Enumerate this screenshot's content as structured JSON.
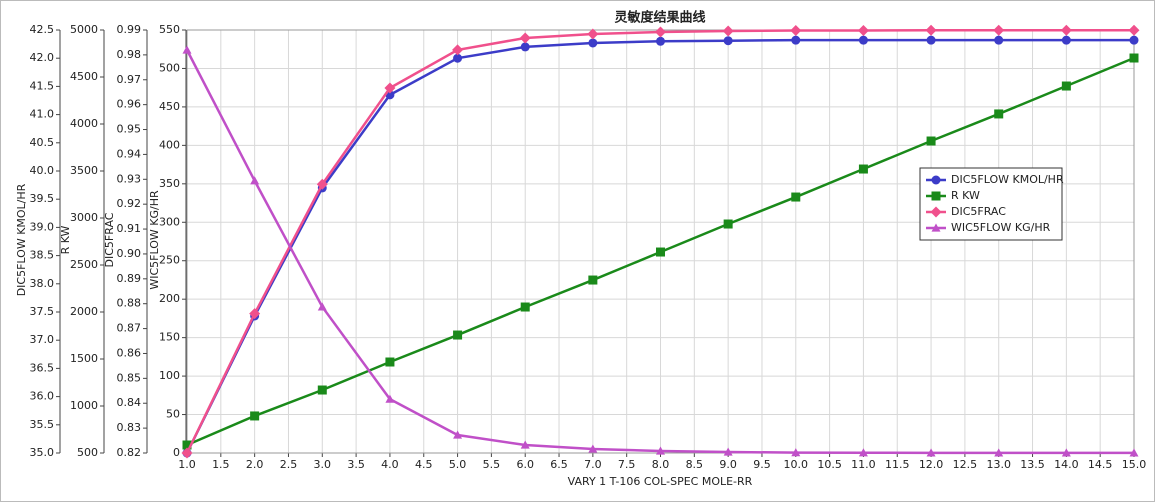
{
  "chart_data": {
    "type": "line",
    "title": "灵敏度结果曲线",
    "x_label": "VARY   1 T-106 COL-SPEC MOLE-RR",
    "x": [
      1,
      2,
      3,
      4,
      5,
      6,
      7,
      8,
      9,
      10,
      11,
      12,
      13,
      14,
      15
    ],
    "xlim": [
      1,
      15
    ],
    "xticks": [
      {
        "value": 1,
        "label": "1.0"
      },
      1.5,
      {
        "value": 2,
        "label": "2.0"
      },
      2.5,
      {
        "value": 3,
        "label": "3.0"
      },
      3.5,
      {
        "value": 4,
        "label": "4.0"
      },
      4.5,
      {
        "value": 5,
        "label": "5.0"
      },
      5.5,
      {
        "value": 6,
        "label": "6.0"
      },
      6.5,
      {
        "value": 7,
        "label": "7.0"
      },
      7.5,
      {
        "value": 8,
        "label": "8.0"
      },
      8.5,
      {
        "value": 9,
        "label": "9.0"
      },
      9.5,
      {
        "value": 10,
        "label": "10.0"
      },
      10.5,
      {
        "value": 11,
        "label": "11.0"
      },
      11.5,
      {
        "value": 12,
        "label": "12.0"
      },
      12.5,
      {
        "value": 13,
        "label": "13.0"
      },
      13.5,
      {
        "value": 14,
        "label": "14.0"
      },
      14.5,
      {
        "value": 15,
        "label": "15.0"
      }
    ],
    "grid": true,
    "axes": [
      {
        "label": "DIC5FLOW KMOL/HR",
        "ylim": [
          35,
          42.5
        ],
        "yticks": [
          {
            "value": 35,
            "label": "35.0"
          },
          35.5,
          {
            "value": 36,
            "label": "36.0"
          },
          36.5,
          {
            "value": 37,
            "label": "37.0"
          },
          37.5,
          {
            "value": 38,
            "label": "38.0"
          },
          38.5,
          {
            "value": 39,
            "label": "39.0"
          },
          39.5,
          {
            "value": 40,
            "label": "40.0"
          },
          40.5,
          {
            "value": 41,
            "label": "41.0"
          },
          41.5,
          {
            "value": 42,
            "label": "42.0"
          },
          42.5
        ]
      },
      {
        "label": "R KW",
        "ylim": [
          500,
          5000
        ],
        "yticks": [
          500,
          1000,
          1500,
          2000,
          2500,
          3000,
          3500,
          4000,
          4500,
          5000
        ]
      },
      {
        "label": "DIC5FRAC",
        "ylim": [
          0.82,
          0.99
        ],
        "yticks": [
          0.82,
          0.83,
          0.84,
          0.85,
          0.86,
          0.87,
          0.88,
          0.89,
          {
            "value": 0.9,
            "label": "0.90"
          },
          0.91,
          0.92,
          0.93,
          0.94,
          0.95,
          0.96,
          0.97,
          0.98,
          0.99
        ]
      },
      {
        "label": "WIC5FLOW KG/HR",
        "ylim": [
          0,
          550
        ],
        "yticks": [
          0,
          50,
          100,
          150,
          200,
          250,
          300,
          350,
          400,
          450,
          500,
          550
        ]
      }
    ],
    "series": [
      {
        "name": "DIC5FLOW KMOL/HR",
        "color": "#3c3cc8",
        "marker": "circle",
        "axis": 0,
        "values": [
          35.0,
          37.43,
          39.7,
          41.35,
          42.0,
          42.2,
          42.27,
          42.3,
          42.31,
          42.32,
          42.32,
          42.32,
          42.32,
          42.32,
          42.32
        ]
      },
      {
        "name": "R KW",
        "color": "#1a8a1a",
        "marker": "square",
        "axis": 1,
        "values": [
          585,
          894,
          1170,
          1468,
          1755,
          2053,
          2340,
          2638,
          2936,
          3223,
          3521,
          3819,
          4107,
          4404,
          4702
        ]
      },
      {
        "name": "DIC5FRAC",
        "color": "#f0508c",
        "marker": "diamond",
        "axis": 2,
        "values": [
          0.82,
          0.876,
          0.928,
          0.9667,
          0.982,
          0.9868,
          0.9884,
          0.9892,
          0.9896,
          0.9898,
          0.9898,
          0.9899,
          0.9899,
          0.9899,
          0.9899
        ]
      },
      {
        "name": "WIC5FLOW KG/HR",
        "color": "#c050c8",
        "marker": "triangle",
        "axis": 3,
        "values": [
          524,
          354,
          190,
          70,
          23.4,
          10.4,
          5.2,
          2.6,
          1.3,
          0.5,
          0.3,
          0.2,
          0.1,
          0.1,
          0.1
        ]
      }
    ]
  }
}
